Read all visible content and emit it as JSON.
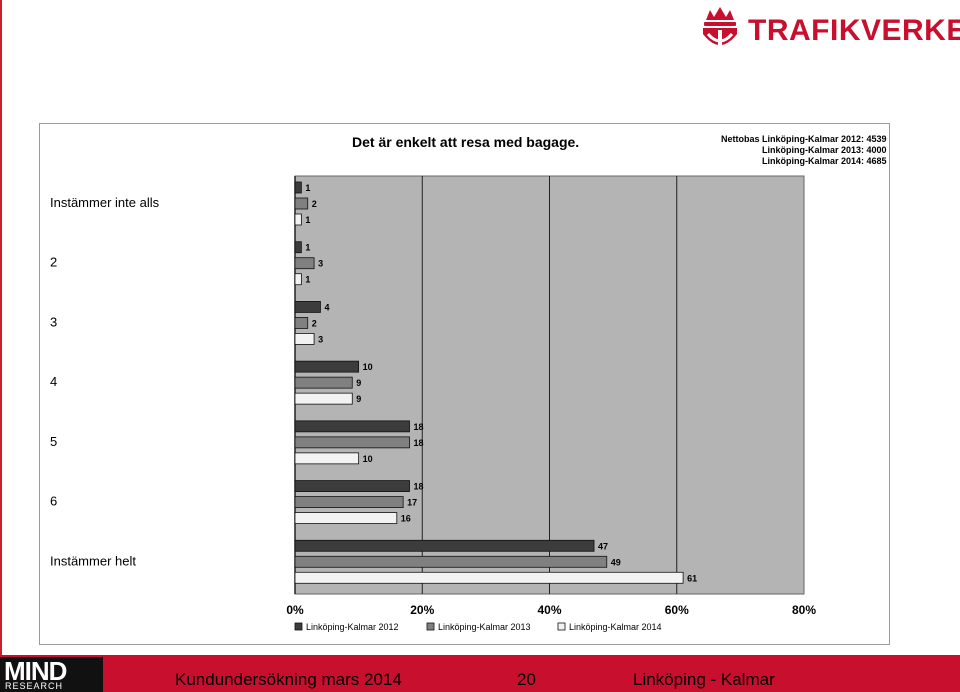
{
  "header": {
    "brand": "TRAFIKVERKET",
    "brand_color": "#c8102e",
    "logo_icon": "crown-shield-icon"
  },
  "chart_data": {
    "type": "bar",
    "orientation": "horizontal",
    "title": "Det är enkelt att resa med bagage.",
    "nettobas_label": "Nettobas",
    "nettobas": [
      "Linköping-Kalmar 2012: 4539",
      "Linköping-Kalmar 2013: 4000",
      "Linköping-Kalmar 2014: 4685"
    ],
    "categories": [
      "Instämmer inte alls",
      "2",
      "3",
      "4",
      "5",
      "6",
      "Instämmer helt"
    ],
    "series": [
      {
        "name": "Linköping-Kalmar 2012",
        "values": [
          1,
          1,
          4,
          10,
          18,
          18,
          47
        ],
        "color": "#3c3c3c"
      },
      {
        "name": "Linköping-Kalmar 2013",
        "values": [
          2,
          3,
          2,
          9,
          18,
          17,
          49
        ],
        "color": "#808080"
      },
      {
        "name": "Linköping-Kalmar 2014",
        "values": [
          1,
          1,
          3,
          9,
          10,
          16,
          61
        ],
        "color": "#f2f2f2"
      }
    ],
    "x_ticks": [
      "0%",
      "20%",
      "40%",
      "60%",
      "80%"
    ],
    "xlim": [
      0,
      80
    ],
    "grid": true,
    "legend": "bottom",
    "plot_background": "#b4b4b4"
  },
  "footer": {
    "logo_word": "MIND",
    "logo_sub": "RESEARCH",
    "left_text": "Kundundersökning mars 2014",
    "page_number": "20",
    "right_text": "Linköping - Kalmar"
  }
}
